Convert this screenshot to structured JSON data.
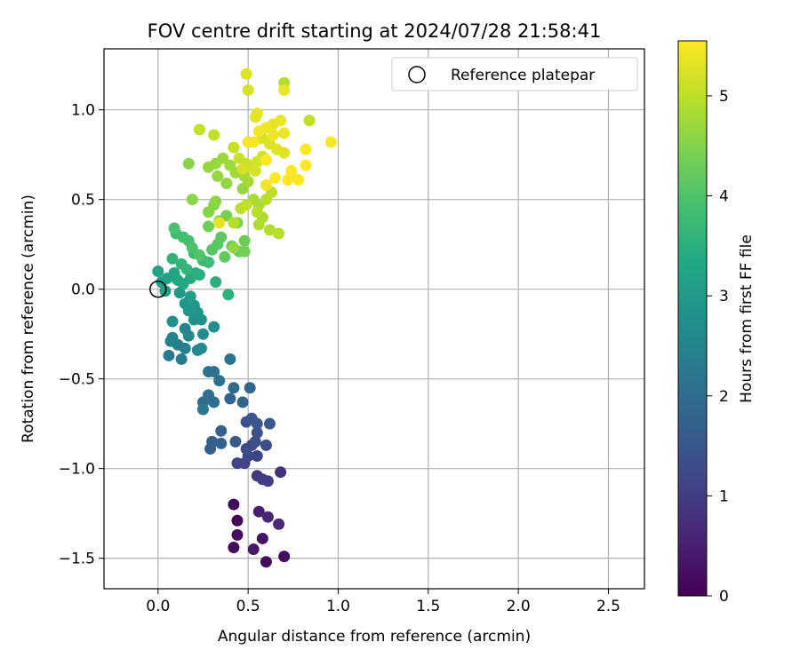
{
  "chart_data": {
    "type": "scatter",
    "title": "FOV centre drift starting at 2024/07/28 21:58:41",
    "xlabel": "Angular distance from reference (arcmin)",
    "ylabel": "Rotation from reference (arcmin)",
    "xlim": [
      -0.3,
      2.7
    ],
    "ylim": [
      -1.67,
      1.34
    ],
    "x_ticks": [
      0.0,
      0.5,
      1.0,
      1.5,
      2.0,
      2.5
    ],
    "x_tick_labels": [
      "0.0",
      "0.5",
      "1.0",
      "1.5",
      "2.0",
      "2.5"
    ],
    "y_ticks": [
      -1.5,
      -1.0,
      -0.5,
      0.0,
      0.5,
      1.0
    ],
    "y_tick_labels": [
      "−1.5",
      "−1.0",
      "−0.5",
      "0.0",
      "0.5",
      "1.0"
    ],
    "grid": true,
    "legend": {
      "placement": "top-right",
      "entries": [
        "Reference platepar"
      ]
    },
    "reference_point": {
      "x": 0.0,
      "y": 0.0,
      "label": "Reference platepar"
    },
    "colorbar": {
      "label": "Hours from first FF file",
      "colormap": "viridis",
      "range": [
        0,
        5.55
      ],
      "ticks": [
        0,
        1,
        2,
        3,
        4,
        5
      ],
      "tick_labels": [
        "0",
        "1",
        "2",
        "3",
        "4",
        "5"
      ]
    },
    "points": [
      {
        "x": 0.42,
        "y": -1.2,
        "h": 0.05
      },
      {
        "x": 0.44,
        "y": -1.29,
        "h": 0.08
      },
      {
        "x": 0.42,
        "y": -1.44,
        "h": 0.12
      },
      {
        "x": 0.6,
        "y": -1.52,
        "h": 0.15
      },
      {
        "x": 0.7,
        "y": -1.49,
        "h": 0.18
      },
      {
        "x": 0.44,
        "y": -1.37,
        "h": 0.22
      },
      {
        "x": 0.58,
        "y": -1.39,
        "h": 0.3
      },
      {
        "x": 0.53,
        "y": -1.45,
        "h": 0.38
      },
      {
        "x": 0.56,
        "y": -1.24,
        "h": 0.48
      },
      {
        "x": 0.61,
        "y": -1.27,
        "h": 0.58
      },
      {
        "x": 0.67,
        "y": -1.31,
        "h": 0.66
      },
      {
        "x": 0.68,
        "y": -1.02,
        "h": 0.8
      },
      {
        "x": 0.55,
        "y": -1.04,
        "h": 0.88
      },
      {
        "x": 0.58,
        "y": -1.06,
        "h": 0.95
      },
      {
        "x": 0.61,
        "y": -1.07,
        "h": 1.0
      },
      {
        "x": 0.48,
        "y": -0.97,
        "h": 1.05
      },
      {
        "x": 0.44,
        "y": -0.97,
        "h": 1.1
      },
      {
        "x": 0.55,
        "y": -0.93,
        "h": 1.14
      },
      {
        "x": 0.5,
        "y": -0.93,
        "h": 1.18
      },
      {
        "x": 0.52,
        "y": -0.87,
        "h": 1.22
      },
      {
        "x": 0.49,
        "y": -0.89,
        "h": 1.26
      },
      {
        "x": 0.6,
        "y": -0.87,
        "h": 1.3
      },
      {
        "x": 0.54,
        "y": -0.85,
        "h": 1.34
      },
      {
        "x": 0.55,
        "y": -0.8,
        "h": 1.38
      },
      {
        "x": 0.49,
        "y": -0.74,
        "h": 1.42
      },
      {
        "x": 0.52,
        "y": -0.72,
        "h": 1.46
      },
      {
        "x": 0.55,
        "y": -0.75,
        "h": 1.5
      },
      {
        "x": 0.62,
        "y": -0.75,
        "h": 1.54
      },
      {
        "x": 0.43,
        "y": -0.85,
        "h": 1.58
      },
      {
        "x": 0.29,
        "y": -0.89,
        "h": 1.62
      },
      {
        "x": 0.3,
        "y": -0.85,
        "h": 1.66
      },
      {
        "x": 0.35,
        "y": -0.86,
        "h": 1.7
      },
      {
        "x": 0.35,
        "y": -0.79,
        "h": 1.74
      },
      {
        "x": 0.4,
        "y": -0.61,
        "h": 1.78
      },
      {
        "x": 0.47,
        "y": -0.63,
        "h": 1.82
      },
      {
        "x": 0.51,
        "y": -0.55,
        "h": 1.86
      },
      {
        "x": 0.42,
        "y": -0.55,
        "h": 1.9
      },
      {
        "x": 0.25,
        "y": -0.63,
        "h": 1.94
      },
      {
        "x": 0.31,
        "y": -0.63,
        "h": 1.98
      },
      {
        "x": 0.28,
        "y": -0.59,
        "h": 2.02
      },
      {
        "x": 0.34,
        "y": -0.51,
        "h": 2.06
      },
      {
        "x": 0.31,
        "y": -0.46,
        "h": 2.1
      },
      {
        "x": 0.28,
        "y": -0.46,
        "h": 2.14
      },
      {
        "x": 0.4,
        "y": -0.39,
        "h": 2.18
      },
      {
        "x": 0.25,
        "y": -0.67,
        "h": 2.22
      },
      {
        "x": 0.06,
        "y": -0.37,
        "h": 2.26
      },
      {
        "x": 0.13,
        "y": -0.39,
        "h": 2.3
      },
      {
        "x": 0.15,
        "y": -0.33,
        "h": 2.34
      },
      {
        "x": 0.11,
        "y": -0.31,
        "h": 2.38
      },
      {
        "x": 0.07,
        "y": -0.29,
        "h": 2.42
      },
      {
        "x": 0.08,
        "y": -0.27,
        "h": 2.46
      },
      {
        "x": 0.15,
        "y": -0.22,
        "h": 2.5
      },
      {
        "x": 0.17,
        "y": -0.26,
        "h": 2.54
      },
      {
        "x": 0.22,
        "y": -0.34,
        "h": 2.58
      },
      {
        "x": 0.24,
        "y": -0.33,
        "h": 2.62
      },
      {
        "x": 0.25,
        "y": -0.25,
        "h": 2.66
      },
      {
        "x": 0.31,
        "y": -0.21,
        "h": 2.7
      },
      {
        "x": 0.08,
        "y": -0.18,
        "h": 2.74
      },
      {
        "x": 0.2,
        "y": -0.17,
        "h": 2.78
      },
      {
        "x": 0.24,
        "y": -0.17,
        "h": 2.82
      },
      {
        "x": 0.22,
        "y": -0.13,
        "h": 2.86
      },
      {
        "x": 0.15,
        "y": -0.08,
        "h": 2.9
      },
      {
        "x": 0.17,
        "y": -0.12,
        "h": 2.94
      },
      {
        "x": 0.2,
        "y": -0.09,
        "h": 2.98
      },
      {
        "x": 0.12,
        "y": -0.02,
        "h": 3.02
      },
      {
        "x": 0.18,
        "y": -0.04,
        "h": 3.06
      },
      {
        "x": 0.04,
        "y": -0.01,
        "h": 3.1
      },
      {
        "x": 0.02,
        "y": 0.04,
        "h": 3.14
      },
      {
        "x": 0.05,
        "y": 0.06,
        "h": 3.18
      },
      {
        "x": 0.0,
        "y": 0.1,
        "h": 3.22
      },
      {
        "x": 0.09,
        "y": 0.09,
        "h": 3.26
      },
      {
        "x": 0.11,
        "y": 0.05,
        "h": 3.3
      },
      {
        "x": 0.14,
        "y": 0.03,
        "h": 3.34
      },
      {
        "x": 0.18,
        "y": 0.06,
        "h": 3.38
      },
      {
        "x": 0.21,
        "y": 0.09,
        "h": 3.42
      },
      {
        "x": 0.23,
        "y": 0.08,
        "h": 3.46
      },
      {
        "x": 0.32,
        "y": 0.04,
        "h": 3.5
      },
      {
        "x": 0.39,
        "y": -0.03,
        "h": 3.54
      },
      {
        "x": 0.08,
        "y": 0.17,
        "h": 3.58
      },
      {
        "x": 0.13,
        "y": 0.14,
        "h": 3.62
      },
      {
        "x": 0.16,
        "y": 0.11,
        "h": 3.66
      },
      {
        "x": 0.2,
        "y": 0.2,
        "h": 3.7
      },
      {
        "x": 0.25,
        "y": 0.16,
        "h": 3.74
      },
      {
        "x": 0.28,
        "y": 0.15,
        "h": 3.78
      },
      {
        "x": 0.1,
        "y": 0.31,
        "h": 3.82
      },
      {
        "x": 0.14,
        "y": 0.29,
        "h": 3.86
      },
      {
        "x": 0.17,
        "y": 0.27,
        "h": 3.9
      },
      {
        "x": 0.09,
        "y": 0.34,
        "h": 3.94
      },
      {
        "x": 0.19,
        "y": 0.23,
        "h": 3.98
      },
      {
        "x": 0.23,
        "y": 0.19,
        "h": 4.02
      },
      {
        "x": 0.3,
        "y": 0.22,
        "h": 4.06
      },
      {
        "x": 0.33,
        "y": 0.25,
        "h": 4.1
      },
      {
        "x": 0.35,
        "y": 0.29,
        "h": 4.14
      },
      {
        "x": 0.37,
        "y": 0.18,
        "h": 4.18
      },
      {
        "x": 0.41,
        "y": 0.24,
        "h": 4.22
      },
      {
        "x": 0.45,
        "y": 0.21,
        "h": 4.26
      },
      {
        "x": 0.48,
        "y": 0.27,
        "h": 4.3
      },
      {
        "x": 0.28,
        "y": 0.35,
        "h": 4.34
      },
      {
        "x": 0.34,
        "y": 0.38,
        "h": 4.38
      },
      {
        "x": 0.38,
        "y": 0.41,
        "h": 4.42
      },
      {
        "x": 0.44,
        "y": 0.37,
        "h": 4.46
      },
      {
        "x": 0.31,
        "y": 0.47,
        "h": 4.5
      },
      {
        "x": 0.28,
        "y": 0.43,
        "h": 4.54
      },
      {
        "x": 0.17,
        "y": 0.7,
        "h": 4.56
      },
      {
        "x": 0.19,
        "y": 0.5,
        "h": 4.58
      },
      {
        "x": 0.32,
        "y": 0.49,
        "h": 4.6
      },
      {
        "x": 0.38,
        "y": 0.59,
        "h": 4.62
      },
      {
        "x": 0.47,
        "y": 0.56,
        "h": 4.64
      },
      {
        "x": 0.33,
        "y": 0.63,
        "h": 4.66
      },
      {
        "x": 0.28,
        "y": 0.68,
        "h": 4.68
      },
      {
        "x": 0.32,
        "y": 0.7,
        "h": 4.7
      },
      {
        "x": 0.36,
        "y": 0.73,
        "h": 4.72
      },
      {
        "x": 0.4,
        "y": 0.69,
        "h": 4.74
      },
      {
        "x": 0.43,
        "y": 0.65,
        "h": 4.76
      },
      {
        "x": 0.48,
        "y": 0.63,
        "h": 4.78
      },
      {
        "x": 0.5,
        "y": 0.6,
        "h": 4.8
      },
      {
        "x": 0.53,
        "y": 0.5,
        "h": 4.82
      },
      {
        "x": 0.56,
        "y": 0.47,
        "h": 4.84
      },
      {
        "x": 0.58,
        "y": 0.4,
        "h": 4.86
      },
      {
        "x": 0.56,
        "y": 0.36,
        "h": 4.88
      },
      {
        "x": 0.62,
        "y": 0.33,
        "h": 4.9
      },
      {
        "x": 0.67,
        "y": 0.31,
        "h": 4.92
      },
      {
        "x": 0.55,
        "y": 0.43,
        "h": 4.94
      },
      {
        "x": 0.6,
        "y": 0.5,
        "h": 4.96
      },
      {
        "x": 0.63,
        "y": 0.54,
        "h": 4.98
      },
      {
        "x": 0.46,
        "y": 0.45,
        "h": 5.0
      },
      {
        "x": 0.49,
        "y": 0.47,
        "h": 5.02
      },
      {
        "x": 0.23,
        "y": 0.89,
        "h": 5.04
      },
      {
        "x": 0.31,
        "y": 0.86,
        "h": 5.06
      },
      {
        "x": 0.42,
        "y": 0.79,
        "h": 5.08
      },
      {
        "x": 0.45,
        "y": 0.73,
        "h": 5.1
      },
      {
        "x": 0.49,
        "y": 0.7,
        "h": 5.12
      },
      {
        "x": 0.52,
        "y": 0.68,
        "h": 5.14
      },
      {
        "x": 0.55,
        "y": 0.71,
        "h": 5.16
      },
      {
        "x": 0.58,
        "y": 0.74,
        "h": 5.18
      },
      {
        "x": 0.54,
        "y": 0.66,
        "h": 5.2
      },
      {
        "x": 0.47,
        "y": 0.67,
        "h": 5.22
      },
      {
        "x": 0.58,
        "y": 0.84,
        "h": 5.24
      },
      {
        "x": 0.62,
        "y": 0.81,
        "h": 5.26
      },
      {
        "x": 0.66,
        "y": 0.78,
        "h": 5.28
      },
      {
        "x": 0.7,
        "y": 0.76,
        "h": 5.3
      },
      {
        "x": 0.54,
        "y": 0.96,
        "h": 5.32
      },
      {
        "x": 0.55,
        "y": 0.98,
        "h": 5.34
      },
      {
        "x": 0.64,
        "y": 0.92,
        "h": 5.36
      },
      {
        "x": 0.68,
        "y": 0.94,
        "h": 5.38
      },
      {
        "x": 0.7,
        "y": 0.87,
        "h": 5.4
      },
      {
        "x": 0.6,
        "y": 0.9,
        "h": 5.42
      },
      {
        "x": 0.64,
        "y": 0.86,
        "h": 5.44
      },
      {
        "x": 0.56,
        "y": 0.88,
        "h": 5.46
      },
      {
        "x": 0.5,
        "y": 0.82,
        "h": 5.48
      },
      {
        "x": 0.53,
        "y": 0.82,
        "h": 5.5
      },
      {
        "x": 0.6,
        "y": 0.72,
        "h": 5.52
      },
      {
        "x": 0.65,
        "y": 0.62,
        "h": 5.54
      },
      {
        "x": 0.72,
        "y": 0.61,
        "h": 5.56
      },
      {
        "x": 0.78,
        "y": 0.61,
        "h": 5.58
      },
      {
        "x": 0.84,
        "y": 0.94,
        "h": 5.0
      },
      {
        "x": 0.49,
        "y": 1.2,
        "h": 5.3
      },
      {
        "x": 0.5,
        "y": 1.11,
        "h": 5.2
      },
      {
        "x": 0.7,
        "y": 1.15,
        "h": 4.9
      },
      {
        "x": 0.7,
        "y": 1.11,
        "h": 5.4
      },
      {
        "x": 0.96,
        "y": 0.82,
        "h": 5.55
      },
      {
        "x": 0.82,
        "y": 0.78,
        "h": 5.55
      },
      {
        "x": 0.82,
        "y": 0.69,
        "h": 5.55
      },
      {
        "x": 0.74,
        "y": 0.66,
        "h": 5.55
      },
      {
        "x": 0.74,
        "y": 0.63,
        "h": 5.55
      },
      {
        "x": 0.6,
        "y": 0.58,
        "h": 5.45
      },
      {
        "x": 0.34,
        "y": 0.37,
        "h": 5.35
      },
      {
        "x": 0.42,
        "y": 0.37,
        "h": 4.95
      },
      {
        "x": 0.48,
        "y": 0.21,
        "h": 4.35
      },
      {
        "x": 0.42,
        "y": 0.23,
        "h": 4.65
      }
    ]
  }
}
